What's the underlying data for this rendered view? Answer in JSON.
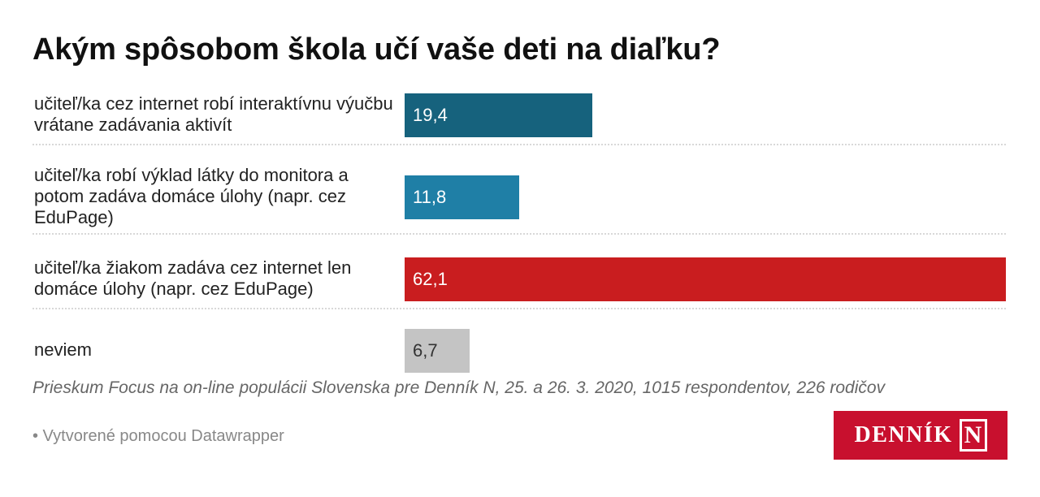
{
  "title": "Akým spôsobom škola učí vaše deti na diaľku?",
  "chart_data": {
    "type": "bar",
    "orientation": "horizontal",
    "title": "Akým spôsobom škola učí vaše deti na diaľku?",
    "xlabel": "",
    "ylabel": "",
    "xlim": [
      0,
      62.1
    ],
    "categories": [
      "učiteľ/ka cez internet robí interaktívnu výučbu vrátane zadávania aktivít",
      "učiteľ/ka robí výklad látky do monitora a potom zadáva domáce úlohy (napr. cez EduPage)",
      "učiteľ/ka žiakom zadáva cez internet len domáce úlohy (napr. cez EduPage)",
      "neviem"
    ],
    "values": [
      19.4,
      11.8,
      62.1,
      6.7
    ],
    "value_labels": [
      "19,4",
      "11,8",
      "62,1",
      "6,7"
    ],
    "colors": [
      "#16627d",
      "#1f7fa6",
      "#c91d1f",
      "#c4c4c4"
    ],
    "label_colors": [
      "#ffffff",
      "#ffffff",
      "#ffffff",
      "#333333"
    ]
  },
  "source": "Prieskum Focus na on-line populácii Slovenska pre Denník N, 25. a 26. 3. 2020, 1015 respondentov, 226 rodičov",
  "credit": "• Vytvorené pomocou Datawrapper",
  "logo": {
    "text": "DENNÍK",
    "mark": "N",
    "color": "#c8102e"
  }
}
